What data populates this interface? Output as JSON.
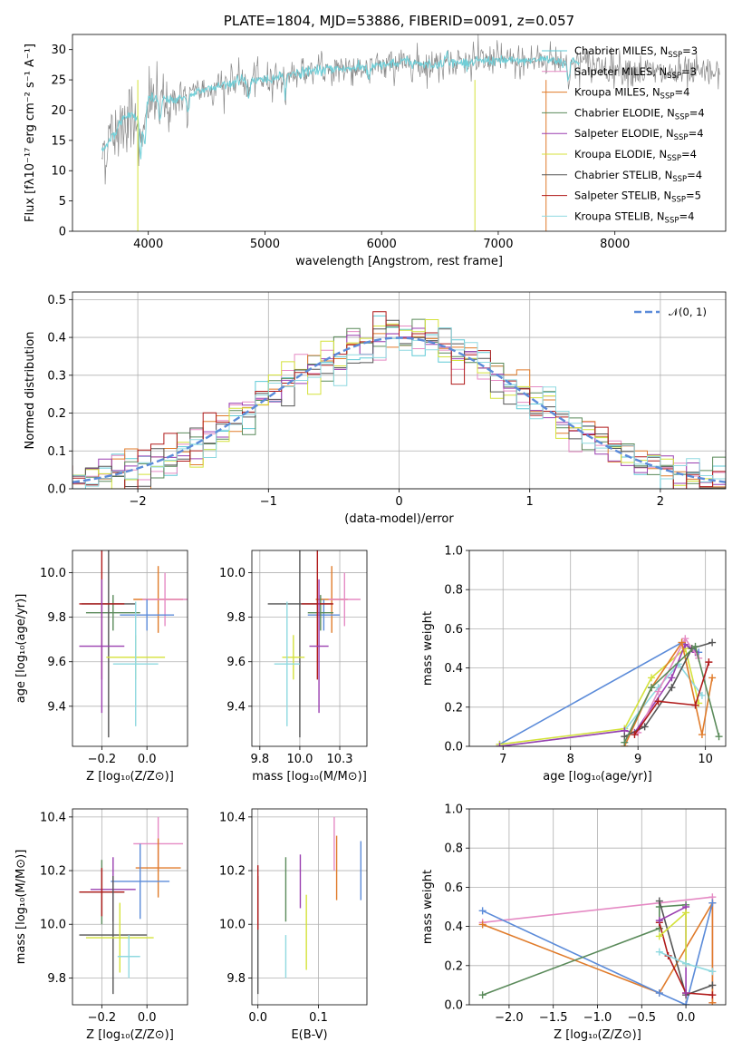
{
  "chart_data": [
    {
      "id": "spectrum",
      "type": "line",
      "title": "PLATE=1804, MJD=53886, FIBERID=0091, z=0.057",
      "xlabel": "wavelength [Angstrom, rest frame]",
      "ylabel": "Flux [fλ10⁻¹⁷ erg cm⁻² s⁻¹ A⁻¹]",
      "xlim": [
        3350,
        8950
      ],
      "ylim": [
        0,
        32.5
      ],
      "xticks": [
        4000,
        5000,
        6000,
        7000,
        8000
      ],
      "yticks": [
        0,
        5,
        10,
        15,
        20,
        25,
        30
      ],
      "grid": false,
      "legend_position": "right",
      "legend": [
        {
          "name": "Chabrier MILES, N_SSP=3",
          "color": "#5ec9d6"
        },
        {
          "name": "Salpeter MILES, N_SSP=3",
          "color": "#e58ac4"
        },
        {
          "name": "Kroupa MILES, N_SSP=4",
          "color": "#e07b2a"
        },
        {
          "name": "Chabrier ELODIE, N_SSP=4",
          "color": "#5a8a5a"
        },
        {
          "name": "Salpeter ELODIE, N_SSP=4",
          "color": "#9a3fb0"
        },
        {
          "name": "Kroupa ELODIE, N_SSP=4",
          "color": "#d4e23a"
        },
        {
          "name": "Chabrier STELIB, N_SSP=4",
          "color": "#555555"
        },
        {
          "name": "Salpeter STELIB, N_SSP=5",
          "color": "#b01a1a"
        },
        {
          "name": "Kroupa STELIB, N_SSP=4",
          "color": "#8fd9e0"
        }
      ],
      "data_color": "#888888",
      "model_color": "#6fcfd8",
      "continuum": [
        [
          3600,
          13
        ],
        [
          3700,
          16
        ],
        [
          3800,
          19
        ],
        [
          3900,
          19
        ],
        [
          4000,
          22
        ],
        [
          4200,
          21.5
        ],
        [
          4400,
          23
        ],
        [
          4600,
          24
        ],
        [
          4800,
          25
        ],
        [
          5000,
          25
        ],
        [
          5200,
          26
        ],
        [
          5400,
          26.5
        ],
        [
          5600,
          26.8
        ],
        [
          5800,
          27
        ],
        [
          6000,
          27.3
        ],
        [
          6200,
          28
        ],
        [
          6400,
          27.5
        ],
        [
          6600,
          27.8
        ],
        [
          6800,
          28
        ],
        [
          7000,
          28.3
        ],
        [
          7200,
          28
        ],
        [
          7400,
          28.5
        ],
        [
          7600,
          28
        ],
        [
          7800,
          27.5
        ],
        [
          8000,
          27
        ],
        [
          8200,
          26.5
        ],
        [
          8400,
          26
        ],
        [
          8600,
          26
        ],
        [
          8800,
          26
        ]
      ]
    },
    {
      "id": "residuals",
      "type": "histogram",
      "xlabel": "(data-model)/error",
      "ylabel": "Normed distribution",
      "xlim": [
        -2.5,
        2.5
      ],
      "ylim": [
        0,
        0.52
      ],
      "xticks": [
        -2,
        -1,
        0,
        1,
        2
      ],
      "yticks": [
        0,
        0.1,
        0.2,
        0.3,
        0.4,
        0.5
      ],
      "grid": true,
      "legend_position": "top-right",
      "reference": {
        "name": "𝒩(0, 1)",
        "color": "#5b8bd9",
        "mean": 0,
        "sigma": 1
      }
    },
    {
      "id": "age-vs-Z",
      "type": "errorbar",
      "xlabel": "Z [log₁₀(Z/Z⊙)]",
      "ylabel": "age  [log₁₀(age/yr)]",
      "xlim": [
        -0.33,
        0.18
      ],
      "ylim": [
        9.22,
        10.1
      ],
      "xticks": [
        -0.2,
        0.0
      ],
      "yticks": [
        9.4,
        9.6,
        9.8,
        10.0
      ],
      "grid": true,
      "points": [
        {
          "color": "#e07b2a",
          "x": 0.05,
          "xerr": 0.11,
          "y": 9.88,
          "yerr": 0.15
        },
        {
          "color": "#e58ac4",
          "x": 0.08,
          "xerr": 0.1,
          "y": 9.88,
          "yerr": 0.12
        },
        {
          "color": "#5b8bd9",
          "x": 0.0,
          "xerr": 0.12,
          "y": 9.81,
          "yerr": 0.07
        },
        {
          "color": "#5a8a5a",
          "x": -0.15,
          "xerr": 0.12,
          "y": 9.82,
          "yerr": 0.08
        },
        {
          "color": "#555555",
          "x": -0.17,
          "xerr": 0.12,
          "y": 9.86,
          "yerr": 0.6
        },
        {
          "color": "#b01a1a",
          "x": -0.2,
          "xerr": 0.1,
          "y": 9.86,
          "yerr": 0.34
        },
        {
          "color": "#9a3fb0",
          "x": -0.2,
          "xerr": 0.1,
          "y": 9.67,
          "yerr": 0.3
        },
        {
          "color": "#d4e23a",
          "x": -0.05,
          "xerr": 0.13,
          "y": 9.62,
          "yerr": 0.1
        },
        {
          "color": "#8fd9e0",
          "x": -0.05,
          "xerr": 0.1,
          "y": 9.59,
          "yerr": 0.28
        }
      ]
    },
    {
      "id": "age-vs-mass",
      "type": "errorbar",
      "xlabel": "mass [log₁₀(M/M⊙)]",
      "ylabel": "",
      "xlim": [
        9.7,
        10.42
      ],
      "ylim": [
        9.22,
        10.1
      ],
      "xticks": [
        9.75,
        10.0,
        10.25
      ],
      "yticks": [
        9.4,
        9.6,
        9.8,
        10.0
      ],
      "grid": true,
      "points": [
        {
          "color": "#e07b2a",
          "x": 10.2,
          "xerr": 0.1,
          "y": 9.88,
          "yerr": 0.15
        },
        {
          "color": "#e58ac4",
          "x": 10.28,
          "xerr": 0.1,
          "y": 9.88,
          "yerr": 0.12
        },
        {
          "color": "#5b8bd9",
          "x": 10.15,
          "xerr": 0.1,
          "y": 9.81,
          "yerr": 0.07
        },
        {
          "color": "#5a8a5a",
          "x": 10.13,
          "xerr": 0.08,
          "y": 9.82,
          "yerr": 0.08
        },
        {
          "color": "#555555",
          "x": 10.0,
          "xerr": 0.2,
          "y": 9.86,
          "yerr": 0.6
        },
        {
          "color": "#b01a1a",
          "x": 10.11,
          "xerr": 0.1,
          "y": 9.86,
          "yerr": 0.34
        },
        {
          "color": "#9a3fb0",
          "x": 10.12,
          "xerr": 0.06,
          "y": 9.67,
          "yerr": 0.3
        },
        {
          "color": "#d4e23a",
          "x": 9.96,
          "xerr": 0.07,
          "y": 9.62,
          "yerr": 0.1
        },
        {
          "color": "#8fd9e0",
          "x": 9.92,
          "xerr": 0.08,
          "y": 9.59,
          "yerr": 0.28
        }
      ]
    },
    {
      "id": "mass-weight-vs-age",
      "type": "line",
      "xlabel": "age  [log₁₀(age/yr)]",
      "ylabel": "mass weight",
      "xlim": [
        6.5,
        10.3
      ],
      "ylim": [
        0,
        1
      ],
      "xticks": [
        7,
        8,
        9,
        10
      ],
      "yticks": [
        0.0,
        0.2,
        0.4,
        0.6,
        0.8,
        1.0
      ],
      "grid": true,
      "series": [
        {
          "color": "#5b8bd9",
          "points": [
            [
              6.95,
              0.01
            ],
            [
              9.65,
              0.53
            ],
            [
              9.9,
              0.48
            ]
          ]
        },
        {
          "color": "#d4e23a",
          "points": [
            [
              6.95,
              0.01
            ],
            [
              8.8,
              0.09
            ],
            [
              9.2,
              0.35
            ],
            [
              9.7,
              0.5
            ],
            [
              9.9,
              0.22
            ]
          ]
        },
        {
          "color": "#8fd9e0",
          "points": [
            [
              6.95,
              0.0
            ],
            [
              8.8,
              0.08
            ],
            [
              9.3,
              0.3
            ],
            [
              9.6,
              0.42
            ],
            [
              9.95,
              0.26
            ]
          ]
        },
        {
          "color": "#9a3fb0",
          "points": [
            [
              6.95,
              0.0
            ],
            [
              8.8,
              0.08
            ],
            [
              8.95,
              0.07
            ],
            [
              9.5,
              0.35
            ],
            [
              9.7,
              0.52
            ],
            [
              9.85,
              0.48
            ]
          ]
        },
        {
          "color": "#e58ac4",
          "points": [
            [
              9.0,
              0.07
            ],
            [
              9.3,
              0.28
            ],
            [
              9.7,
              0.55
            ],
            [
              9.9,
              0.45
            ]
          ]
        },
        {
          "color": "#e07b2a",
          "points": [
            [
              8.8,
              0.0
            ],
            [
              9.2,
              0.3
            ],
            [
              9.65,
              0.53
            ],
            [
              9.95,
              0.06
            ],
            [
              10.1,
              0.35
            ]
          ]
        },
        {
          "color": "#555555",
          "points": [
            [
              8.8,
              0.05
            ],
            [
              9.1,
              0.1
            ],
            [
              9.5,
              0.3
            ],
            [
              9.8,
              0.5
            ],
            [
              10.1,
              0.53
            ]
          ]
        },
        {
          "color": "#5a8a5a",
          "points": [
            [
              8.8,
              0.02
            ],
            [
              9.2,
              0.3
            ],
            [
              9.85,
              0.51
            ],
            [
              10.2,
              0.05
            ]
          ]
        },
        {
          "color": "#b01a1a",
          "points": [
            [
              8.95,
              0.06
            ],
            [
              9.3,
              0.23
            ],
            [
              9.85,
              0.21
            ],
            [
              10.05,
              0.43
            ]
          ]
        }
      ]
    },
    {
      "id": "mass-vs-Z",
      "type": "errorbar",
      "xlabel": "Z [log₁₀(Z/Z⊙)]",
      "ylabel": "mass [log₁₀(M/M⊙)]",
      "xlim": [
        -0.33,
        0.18
      ],
      "ylim": [
        9.7,
        10.43
      ],
      "xticks": [
        -0.2,
        0.0
      ],
      "yticks": [
        9.8,
        10.0,
        10.2,
        10.4
      ],
      "grid": true,
      "points": [
        {
          "color": "#e58ac4",
          "x": 0.05,
          "xerr": 0.11,
          "y": 10.3,
          "yerr": 0.1
        },
        {
          "color": "#e07b2a",
          "x": 0.05,
          "xerr": 0.1,
          "y": 10.21,
          "yerr": 0.11
        },
        {
          "color": "#5b8bd9",
          "x": -0.03,
          "xerr": 0.13,
          "y": 10.16,
          "yerr": 0.14
        },
        {
          "color": "#9a3fb0",
          "x": -0.15,
          "xerr": 0.1,
          "y": 10.13,
          "yerr": 0.12
        },
        {
          "color": "#5a8a5a",
          "x": -0.2,
          "xerr": 0.1,
          "y": 10.12,
          "yerr": 0.12
        },
        {
          "color": "#b01a1a",
          "x": -0.2,
          "xerr": 0.1,
          "y": 10.12,
          "yerr": 0.09
        },
        {
          "color": "#555555",
          "x": -0.15,
          "xerr": 0.15,
          "y": 9.96,
          "yerr": 0.22
        },
        {
          "color": "#d4e23a",
          "x": -0.12,
          "xerr": 0.15,
          "y": 9.95,
          "yerr": 0.13
        },
        {
          "color": "#8fd9e0",
          "x": -0.08,
          "xerr": 0.05,
          "y": 9.88,
          "yerr": 0.08
        }
      ]
    },
    {
      "id": "mass-vs-ebv",
      "type": "errorbar",
      "xlabel": "E(B-V)",
      "ylabel": "",
      "xlim": [
        -0.005,
        0.09
      ],
      "ylim": [
        9.7,
        10.43
      ],
      "xticks": [
        0.0,
        0.05
      ],
      "yticks": [
        9.8,
        10.0,
        10.2,
        10.4
      ],
      "grid": true,
      "points": [
        {
          "color": "#555555",
          "x": 0.0,
          "xerr": 0,
          "y": 9.96,
          "yerr": 0.22
        },
        {
          "color": "#b01a1a",
          "x": 0.0,
          "xerr": 0,
          "y": 10.1,
          "yerr": 0.12
        },
        {
          "color": "#8fd9e0",
          "x": 0.023,
          "xerr": 0,
          "y": 9.88,
          "yerr": 0.08
        },
        {
          "color": "#5a8a5a",
          "x": 0.023,
          "xerr": 0,
          "y": 10.13,
          "yerr": 0.12
        },
        {
          "color": "#9a3fb0",
          "x": 0.035,
          "xerr": 0,
          "y": 10.16,
          "yerr": 0.1
        },
        {
          "color": "#d4e23a",
          "x": 0.04,
          "xerr": 0,
          "y": 9.97,
          "yerr": 0.14
        },
        {
          "color": "#e58ac4",
          "x": 0.063,
          "xerr": 0,
          "y": 10.3,
          "yerr": 0.1
        },
        {
          "color": "#e07b2a",
          "x": 0.065,
          "xerr": 0,
          "y": 10.21,
          "yerr": 0.12
        },
        {
          "color": "#5b8bd9",
          "x": 0.085,
          "xerr": 0,
          "y": 10.2,
          "yerr": 0.11
        }
      ]
    },
    {
      "id": "mass-weight-vs-Z",
      "type": "line",
      "xlabel": "Z [log₁₀(Z/Z⊙)]",
      "ylabel": "mass weight",
      "xlim": [
        -2.45,
        0.45
      ],
      "ylim": [
        0,
        1
      ],
      "xticks": [
        -2.0,
        -1.5,
        -1.0,
        -0.5,
        0.0
      ],
      "yticks": [
        0.0,
        0.2,
        0.4,
        0.6,
        0.8,
        1.0
      ],
      "grid": true,
      "series": [
        {
          "color": "#e58ac4",
          "points": [
            [
              -2.3,
              0.42
            ],
            [
              0.3,
              0.55
            ],
            [
              0.3,
              0.01
            ]
          ]
        },
        {
          "color": "#e07b2a",
          "points": [
            [
              -2.3,
              0.41
            ],
            [
              -0.3,
              0.06
            ],
            [
              0.3,
              0.52
            ],
            [
              0.3,
              0.01
            ]
          ]
        },
        {
          "color": "#5b8bd9",
          "points": [
            [
              -2.3,
              0.48
            ],
            [
              -0.3,
              0.06
            ],
            [
              0.0,
              0.0
            ],
            [
              0.3,
              0.52
            ]
          ]
        },
        {
          "color": "#5a8a5a",
          "points": [
            [
              -2.3,
              0.05
            ],
            [
              -0.3,
              0.39
            ],
            [
              -0.3,
              0.5
            ],
            [
              0.0,
              0.51
            ]
          ]
        },
        {
          "color": "#555555",
          "points": [
            [
              -0.3,
              0.53
            ],
            [
              0.0,
              0.05
            ],
            [
              0.3,
              0.1
            ]
          ]
        },
        {
          "color": "#b01a1a",
          "points": [
            [
              -0.3,
              0.42
            ],
            [
              -0.2,
              0.25
            ],
            [
              0.0,
              0.06
            ],
            [
              0.3,
              0.05
            ]
          ]
        },
        {
          "color": "#9a3fb0",
          "points": [
            [
              -0.3,
              0.43
            ],
            [
              0.0,
              0.5
            ],
            [
              0.0,
              0.06
            ]
          ]
        },
        {
          "color": "#d4e23a",
          "points": [
            [
              -0.3,
              0.35
            ],
            [
              0.0,
              0.47
            ],
            [
              0.0,
              0.21
            ]
          ]
        },
        {
          "color": "#8fd9e0",
          "points": [
            [
              -0.3,
              0.27
            ],
            [
              0.0,
              0.21
            ],
            [
              0.3,
              0.17
            ]
          ]
        }
      ]
    }
  ]
}
